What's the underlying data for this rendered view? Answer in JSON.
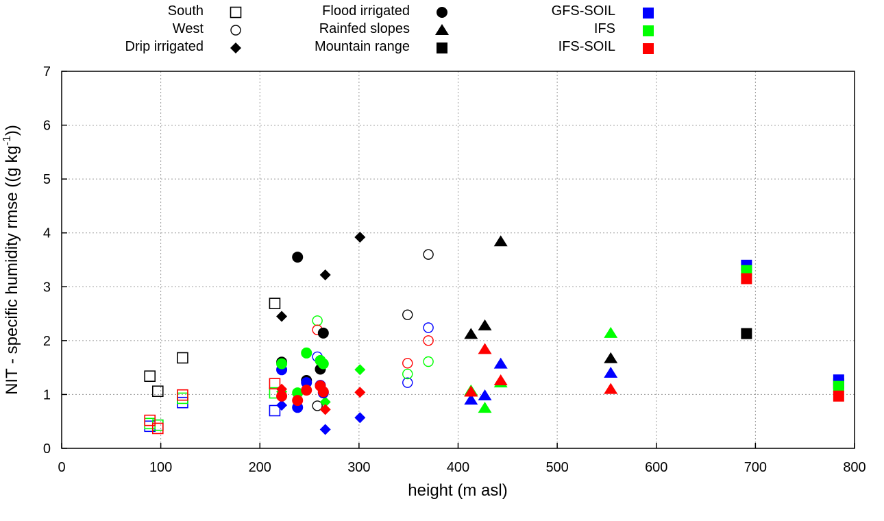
{
  "chart_data": {
    "type": "scatter",
    "xlabel": "height (m asl)",
    "ylabel_parts": [
      "NIT - specific humidity rmse ((g kg",
      "-1",
      "))"
    ],
    "xlim": [
      0,
      800
    ],
    "ylim": [
      0,
      7
    ],
    "xticks": [
      0,
      100,
      200,
      300,
      400,
      500,
      600,
      700,
      800
    ],
    "yticks": [
      0,
      1,
      2,
      3,
      4,
      5,
      6,
      7
    ],
    "grid": true,
    "legend_placement": "top-outside",
    "site_legend": [
      {
        "label": "South",
        "marker": "square-open"
      },
      {
        "label": "West",
        "marker": "circle-open"
      },
      {
        "label": "Drip irrigated",
        "marker": "diamond"
      },
      {
        "label": "Flood irrigated",
        "marker": "circle"
      },
      {
        "label": "Rainfed slopes",
        "marker": "triangle"
      },
      {
        "label": "Mountain range",
        "marker": "square"
      }
    ],
    "model_legend": [
      {
        "label": "GFS-SOIL",
        "key": "gfs_soil",
        "color": "#0000ff"
      },
      {
        "label": "IFS",
        "key": "ifs",
        "color": "#00ff00"
      },
      {
        "label": "IFS-SOIL",
        "key": "ifs_soil",
        "color": "#ff0000"
      }
    ],
    "obs_color": "#000000",
    "groups": [
      {
        "name": "South",
        "marker": "square-open",
        "points": [
          {
            "x": 89,
            "black": 1.34,
            "gfs_soil": 0.41,
            "ifs": 0.46,
            "ifs_soil": 0.52
          },
          {
            "x": 97,
            "black": 1.06,
            "gfs_soil": 0.43,
            "ifs": 0.43,
            "ifs_soil": 0.37
          },
          {
            "x": 122,
            "black": 1.68,
            "gfs_soil": 0.85,
            "ifs": 0.93,
            "ifs_soil": 0.99
          },
          {
            "x": 215,
            "black": 2.69,
            "gfs_soil": 0.7,
            "ifs": 1.03,
            "ifs_soil": 1.2
          }
        ]
      },
      {
        "name": "West",
        "marker": "circle-open",
        "points": [
          {
            "x": 258,
            "black": 0.79,
            "gfs_soil": 1.7,
            "ifs": 2.37,
            "ifs_soil": 2.2
          },
          {
            "x": 349,
            "black": 2.48,
            "gfs_soil": 1.22,
            "ifs": 1.38,
            "ifs_soil": 1.58
          },
          {
            "x": 370,
            "black": 3.6,
            "gfs_soil": 2.24,
            "ifs": 1.61,
            "ifs_soil": 2.0
          }
        ]
      },
      {
        "name": "Drip irrigated",
        "marker": "diamond",
        "points": [
          {
            "x": 222,
            "black": 2.45,
            "gfs_soil": 0.8,
            "ifs": 1.05,
            "ifs_soil": 1.1
          },
          {
            "x": 266,
            "black": 3.22,
            "gfs_soil": 0.35,
            "ifs": 0.86,
            "ifs_soil": 0.72
          },
          {
            "x": 301,
            "black": 3.92,
            "gfs_soil": 0.57,
            "ifs": 1.46,
            "ifs_soil": 1.04
          }
        ]
      },
      {
        "name": "Flood irrigated",
        "marker": "circle",
        "points": [
          {
            "x": 222,
            "black": 1.6,
            "gfs_soil": 1.46,
            "ifs": 1.57,
            "ifs_soil": 0.97
          },
          {
            "x": 238,
            "black": 3.55,
            "gfs_soil": 0.76,
            "ifs": 1.03,
            "ifs_soil": 0.89
          },
          {
            "x": 247,
            "black": 1.26,
            "gfs_soil": 1.22,
            "ifs": 1.77,
            "ifs_soil": 1.08
          },
          {
            "x": 261,
            "black": 1.47,
            "gfs_soil": 1.17,
            "ifs": 1.63,
            "ifs_soil": 1.16
          },
          {
            "x": 264,
            "black": 2.14,
            "gfs_soil": 1.03,
            "ifs": 1.57,
            "ifs_soil": 1.05
          }
        ]
      },
      {
        "name": "Rainfed slopes",
        "marker": "triangle",
        "points": [
          {
            "x": 413,
            "black": 2.12,
            "gfs_soil": 0.9,
            "ifs": 1.07,
            "ifs_soil": 1.05
          },
          {
            "x": 427,
            "black": 2.28,
            "gfs_soil": 0.98,
            "ifs": 0.75,
            "ifs_soil": 1.84
          },
          {
            "x": 443,
            "black": 3.84,
            "gfs_soil": 1.57,
            "ifs": 1.22,
            "ifs_soil": 1.26
          },
          {
            "x": 554,
            "black": 1.67,
            "gfs_soil": 1.4,
            "ifs": 2.14,
            "ifs_soil": 1.1
          }
        ]
      },
      {
        "name": "Mountain range",
        "marker": "square",
        "points": [
          {
            "x": 691,
            "black": 2.13,
            "gfs_soil": 3.4,
            "ifs": 3.3,
            "ifs_soil": 3.15
          },
          {
            "x": 784,
            "black": 1.2,
            "gfs_soil": 1.27,
            "ifs": 1.15,
            "ifs_soil": 0.97
          }
        ]
      }
    ]
  }
}
